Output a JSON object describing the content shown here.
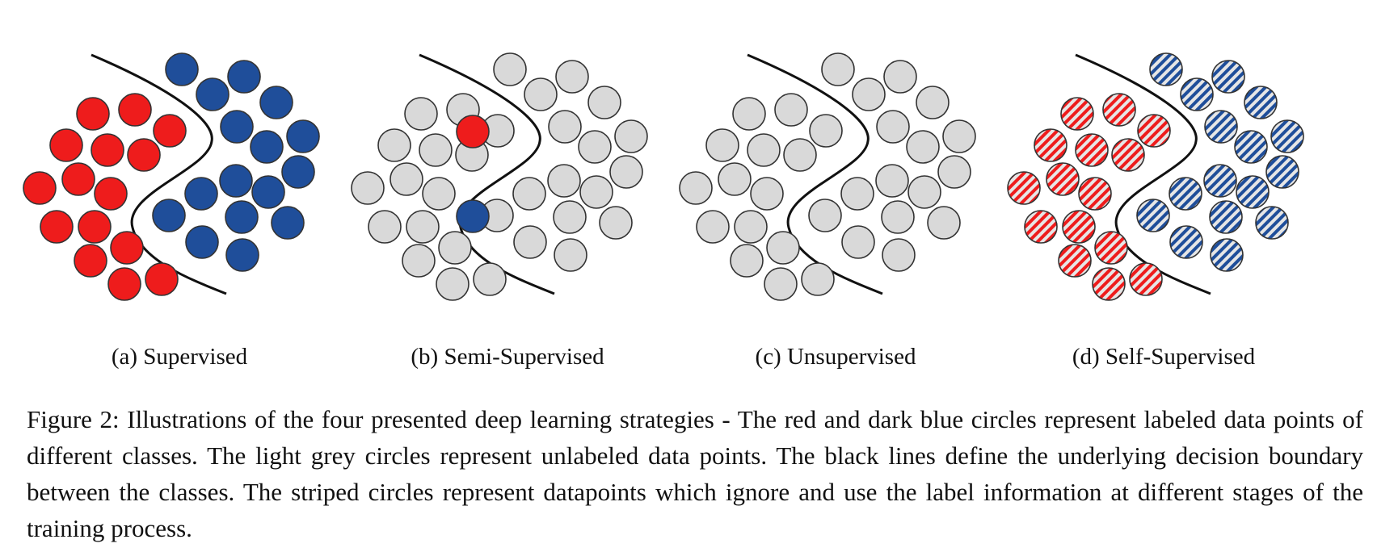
{
  "figure": {
    "colors": {
      "red": "#ee1c1c",
      "blue": "#1f4e9a",
      "grey": "#d9d9d9",
      "outline": "#333333",
      "boundary": "#111111"
    },
    "panels": [
      {
        "label": "(a) Supervised",
        "style": "supervised"
      },
      {
        "label": "(b) Semi-Supervised",
        "style": "semi"
      },
      {
        "label": "(c) Unsupervised",
        "style": "unsupervised"
      },
      {
        "label": "(d) Self-Supervised",
        "style": "self"
      }
    ],
    "caption": "Figure 2:  Illustrations of the four presented deep learning strategies - The red and dark blue circles represent labeled data points of different classes.  The light grey circles represent unlabeled data points.  The black lines define the underlying decision boundary between the classes. The striped circles represent datapoints which ignore and use the label information at different stages of the training process."
  }
}
